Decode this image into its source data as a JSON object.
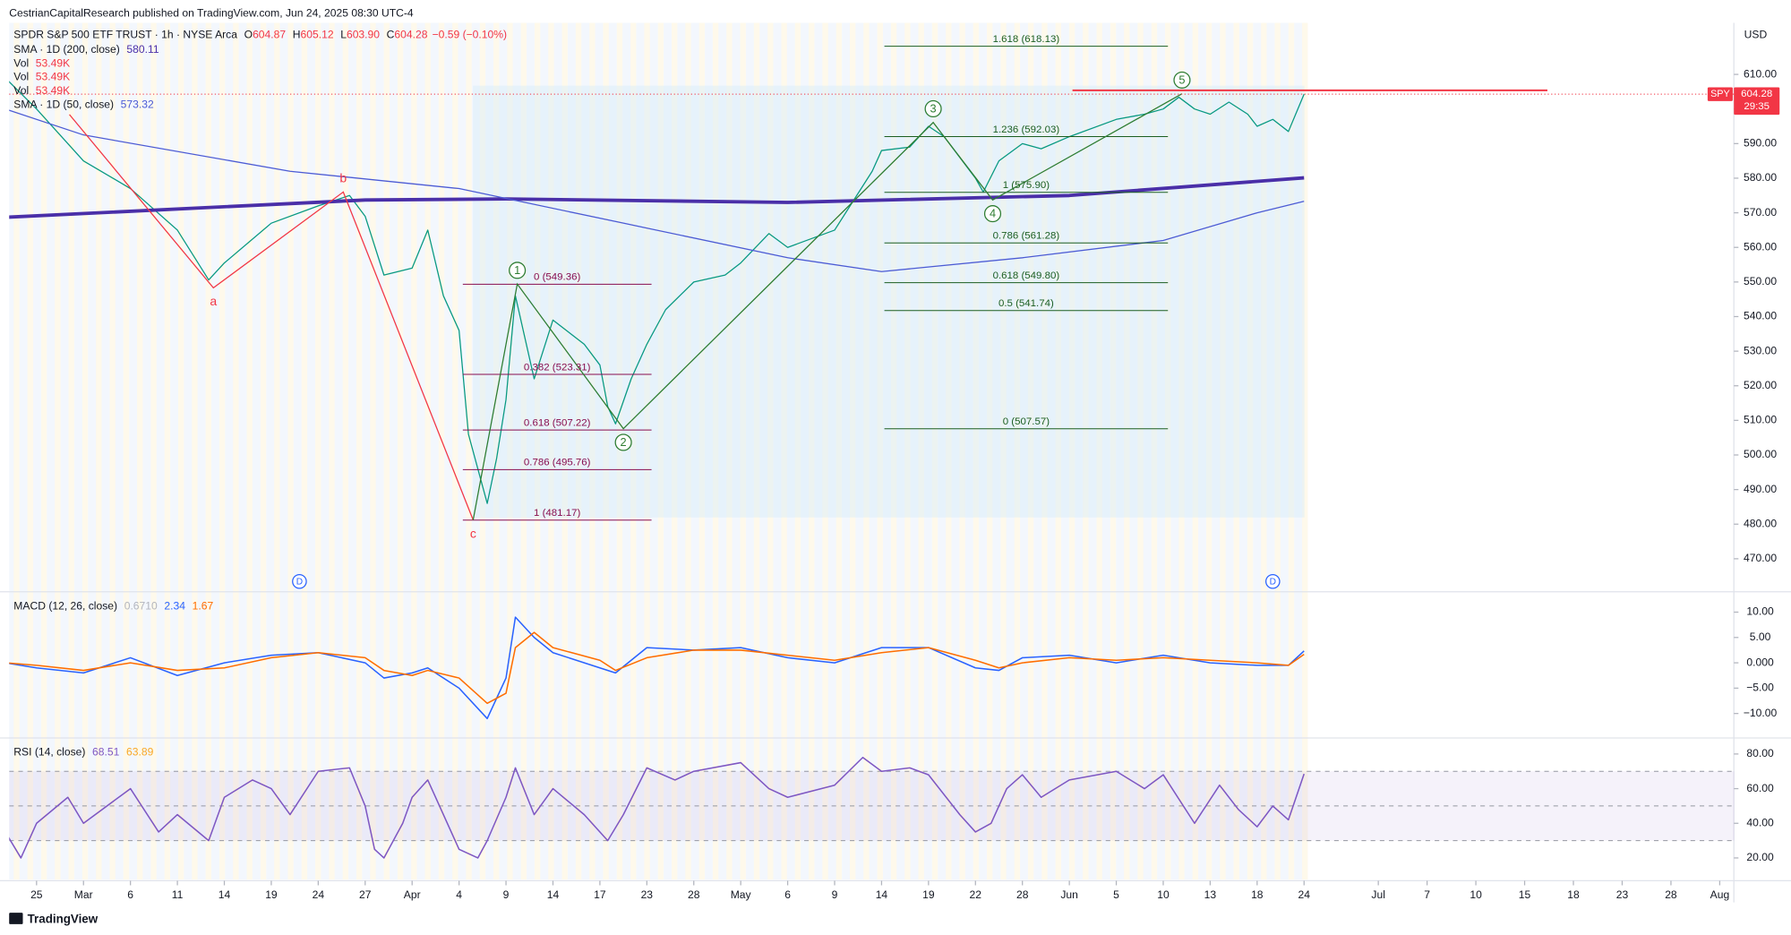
{
  "header": {
    "publisher": "CestrianCapitalResearch published on TradingView.com, Jun 24, 2025 08:30 UTC-4",
    "footer": "TradingView"
  },
  "chart_data": [
    {
      "type": "line",
      "currency": "USD",
      "symbol": "SPY",
      "countdown": "29:35",
      "last_price": {
        "value": 604.28,
        "label": "604.28"
      },
      "ohlc": [
        {
          "label": "O",
          "value": "604.87"
        },
        {
          "label": "H",
          "value": "605.12"
        },
        {
          "label": "L",
          "value": "603.90"
        },
        {
          "label": "C",
          "value": "604.28"
        }
      ],
      "change": "−0.59 (−0.10%)",
      "volume_legend": [
        {
          "name": "Vol",
          "value": "53.49K"
        },
        {
          "name": "Vol",
          "value": "53.49K"
        },
        {
          "name": "Vol",
          "value": "53.49K"
        }
      ],
      "xlim": [
        52.5,
        214.2
      ],
      "xticks": [
        {
          "value": 56,
          "label": "25"
        },
        {
          "value": 62,
          "label": "Mar"
        },
        {
          "value": 65,
          "label": "6"
        },
        {
          "value": 70,
          "label": "11"
        },
        {
          "value": 73,
          "label": "14"
        },
        {
          "value": 78,
          "label": "19"
        },
        {
          "value": 83,
          "label": "24"
        },
        {
          "value": 86,
          "label": "27"
        },
        {
          "value": 91,
          "label": "Apr"
        },
        {
          "value": 94,
          "label": "4"
        },
        {
          "value": 99,
          "label": "9"
        },
        {
          "value": 104,
          "label": "14"
        },
        {
          "value": 107,
          "label": "17"
        },
        {
          "value": 113,
          "label": "23"
        },
        {
          "value": 118,
          "label": "28"
        },
        {
          "value": 121,
          "label": "May"
        },
        {
          "value": 126,
          "label": "6"
        },
        {
          "value": 129,
          "label": "9"
        },
        {
          "value": 134,
          "label": "14"
        },
        {
          "value": 139,
          "label": "19"
        },
        {
          "value": 142,
          "label": "22"
        },
        {
          "value": 148,
          "label": "28"
        },
        {
          "value": 153,
          "label": "Jun"
        },
        {
          "value": 156,
          "label": "5"
        },
        {
          "value": 161,
          "label": "10"
        },
        {
          "value": 164,
          "label": "13"
        },
        {
          "value": 169,
          "label": "18"
        },
        {
          "value": 175,
          "label": "24"
        },
        {
          "value": 182,
          "label": "Jul"
        },
        {
          "value": 188,
          "label": "7"
        },
        {
          "value": 191,
          "label": "10"
        },
        {
          "value": 196,
          "label": "15"
        },
        {
          "value": 199,
          "label": "18"
        },
        {
          "value": 204,
          "label": "23"
        },
        {
          "value": 209,
          "label": "28"
        },
        {
          "value": 213,
          "label": "Aug"
        }
      ],
      "ylim": [
        460.8,
        624.9
      ],
      "yticks": [
        {
          "value": 470,
          "label": "470.00"
        },
        {
          "value": 480,
          "label": "480.00"
        },
        {
          "value": 490,
          "label": "490.00"
        },
        {
          "value": 500,
          "label": "500.00"
        },
        {
          "value": 510,
          "label": "510.00"
        },
        {
          "value": 520,
          "label": "520.00"
        },
        {
          "value": 530,
          "label": "530.00"
        },
        {
          "value": 540,
          "label": "540.00"
        },
        {
          "value": 550,
          "label": "550.00"
        },
        {
          "value": 560,
          "label": "560.00"
        },
        {
          "value": 570,
          "label": "570.00"
        },
        {
          "value": 580,
          "label": "580.00"
        },
        {
          "value": 590,
          "label": "590.00"
        },
        {
          "value": 600,
          "label": "600.00"
        },
        {
          "value": 610,
          "label": "610.00"
        }
      ],
      "series": [
        {
          "name": "SPDR S&P 500 ETF TRUST · 1h · NYSE Arca",
          "color": "#089981",
          "width": 1,
          "x": [
            52,
            56,
            62,
            65,
            70,
            72,
            73,
            78,
            83,
            85,
            86,
            88,
            91,
            92,
            93,
            94,
            95,
            97,
            98,
            99,
            100,
            102,
            104,
            106,
            107,
            108,
            109,
            111,
            113,
            115,
            118,
            120,
            121,
            124,
            126,
            129,
            133,
            134,
            137,
            139,
            140,
            142,
            143,
            145,
            148,
            150,
            153,
            156,
            159,
            161,
            162,
            163,
            164,
            166,
            168,
            169,
            171,
            173,
            175
          ],
          "values": [
            609,
            600,
            585,
            577,
            565,
            550.6,
            555.5,
            567,
            572,
            575,
            569,
            552,
            554,
            565,
            546,
            536,
            506,
            486,
            499,
            516,
            546,
            522,
            539,
            532,
            526,
            514,
            509,
            522,
            532,
            542,
            550,
            552,
            555.5,
            564,
            560,
            565,
            582,
            588,
            589,
            595,
            592,
            580,
            576,
            585,
            590,
            588.5,
            592,
            597,
            598.5,
            600,
            603.4,
            600,
            598.5,
            602,
            598.5,
            595,
            597,
            593.5,
            604.28
          ]
        },
        {
          "name": "SMA · 1D (200, close)",
          "legend_value": "580.11",
          "color": "#4a2fa8",
          "width": 3,
          "x": [
            52,
            86,
            99,
            126,
            153,
            175
          ],
          "values": [
            568.7,
            573.7,
            574,
            573,
            575,
            580.11
          ]
        },
        {
          "name": "SMA · 1D (50, close)",
          "legend_value": "573.32",
          "color": "#4c5bd4",
          "width": 1,
          "x": [
            52,
            62,
            80,
            94,
            110,
            126,
            134,
            148,
            161,
            169,
            175
          ],
          "values": [
            600,
            592.5,
            582,
            577,
            567,
            557,
            553,
            557,
            562,
            570,
            573.32
          ]
        }
      ],
      "waves": [
        {
          "color": "#f23645",
          "circled": false,
          "x": [
            60.2,
            72.3,
            84.6,
            95.5
          ],
          "values": [
            598.4,
            548.3,
            576,
            481.2
          ],
          "labels": [
            null,
            "a",
            "b",
            "c"
          ]
        },
        {
          "color": "#2e7d32",
          "circled": true,
          "x": [
            95.5,
            100.2,
            110,
            139.3,
            144.2,
            162.2
          ],
          "values": [
            481.2,
            549.4,
            507.6,
            596.1,
            573.7,
            604.4
          ],
          "labels": [
            null,
            "1",
            "2",
            "3",
            "4",
            "5"
          ]
        }
      ],
      "fibs": [
        {
          "color": "#880e4f",
          "start": 94.4,
          "end": 113.5,
          "levels": [
            {
              "value": 549.36,
              "label": "0 (549.36)"
            },
            {
              "value": 523.31,
              "label": "0.382 (523.31)"
            },
            {
              "value": 507.22,
              "label": "0.618 (507.22)"
            },
            {
              "value": 495.76,
              "label": "0.786 (495.76)"
            },
            {
              "value": 481.17,
              "label": "1 (481.17)"
            }
          ]
        },
        {
          "color": "#1b5e20",
          "start": 134.3,
          "end": 161.3,
          "levels": [
            {
              "value": 618.13,
              "label": "1.618 (618.13)"
            },
            {
              "value": 592.03,
              "label": "1.236 (592.03)"
            },
            {
              "value": 575.9,
              "label": "1 (575.90)"
            },
            {
              "value": 561.28,
              "label": "0.786 (561.28)"
            },
            {
              "value": 549.8,
              "label": "0.618 (549.80)"
            },
            {
              "value": 541.74,
              "label": "0.5 (541.74)"
            },
            {
              "value": 507.57,
              "label": "0 (507.57)"
            }
          ]
        }
      ],
      "resistance": {
        "value": 605.4,
        "start": 153.2,
        "end": 197.4,
        "color": "#f23645"
      },
      "dividends": [
        {
          "x": 81,
          "label": "D"
        },
        {
          "x": 171,
          "label": "D"
        }
      ]
    },
    {
      "type": "line",
      "title": "MACD (12, 26, close)",
      "legend_values": [
        {
          "text": "0.6710",
          "color": "#b2b5be"
        },
        {
          "text": "2.34",
          "color": "#2962ff"
        },
        {
          "text": "1.67",
          "color": "#ff6d00"
        }
      ],
      "ylim": [
        -14.6,
        13.8
      ],
      "yticks": [
        {
          "value": 10,
          "label": "10.00"
        },
        {
          "value": 5,
          "label": "5.00"
        },
        {
          "value": 0,
          "label": "0.000"
        },
        {
          "value": -5,
          "label": "−5.00"
        },
        {
          "value": -10,
          "label": "−10.00"
        }
      ],
      "series": [
        {
          "color": "#2962ff",
          "width": 1.2,
          "x": [
            52,
            56,
            62,
            65,
            70,
            73,
            78,
            83,
            86,
            88,
            91,
            92,
            94,
            97,
            99,
            100,
            102,
            104,
            107,
            109,
            113,
            118,
            121,
            126,
            129,
            134,
            139,
            142,
            145,
            148,
            153,
            156,
            161,
            164,
            169,
            173,
            175
          ],
          "values": [
            0,
            -1,
            -2,
            1,
            -2.5,
            0,
            1.5,
            2,
            0,
            -3,
            -2,
            -1,
            -5,
            -11,
            -3,
            9,
            5,
            2,
            -1,
            -2,
            3,
            2.5,
            3,
            1,
            0,
            3,
            3,
            -1,
            -1.5,
            1,
            1.5,
            0,
            1.5,
            0,
            -0.5,
            -0.5,
            2.34
          ]
        },
        {
          "color": "#ff6d00",
          "width": 1.2,
          "x": [
            52,
            56,
            62,
            65,
            70,
            73,
            78,
            83,
            86,
            88,
            91,
            92,
            94,
            97,
            99,
            100,
            102,
            104,
            107,
            109,
            113,
            118,
            121,
            126,
            129,
            134,
            139,
            142,
            145,
            148,
            153,
            156,
            161,
            164,
            169,
            173,
            175
          ],
          "values": [
            0,
            -0.5,
            -1.5,
            0,
            -1.5,
            -1,
            1,
            2,
            1,
            -1.5,
            -2.5,
            -1.5,
            -3,
            -8,
            -6,
            3,
            6,
            3,
            0.5,
            -1.5,
            1,
            2.5,
            2.5,
            1.5,
            0.5,
            2,
            3,
            0.5,
            -1,
            0,
            1,
            0.5,
            1,
            0.5,
            0,
            -0.5,
            1.67
          ]
        }
      ]
    },
    {
      "type": "line",
      "title": "RSI (14, close)",
      "legend_values": [
        {
          "text": "68.51",
          "color": "#7e57c2"
        },
        {
          "text": "63.89",
          "color": "#f9a825"
        }
      ],
      "ylim": [
        7.5,
        88.6
      ],
      "yticks": [
        {
          "value": 80,
          "label": "80.00"
        },
        {
          "value": 60,
          "label": "60.00"
        },
        {
          "value": 40,
          "label": "40.00"
        },
        {
          "value": 20,
          "label": "20.00"
        }
      ],
      "bands": [
        70,
        50,
        30
      ],
      "series": [
        {
          "color": "#7e57c2",
          "width": 1.2,
          "x": [
            52,
            54,
            56,
            60,
            62,
            65,
            68,
            70,
            72,
            73,
            76,
            78,
            80,
            83,
            85,
            86,
            87,
            88,
            90,
            91,
            92,
            94,
            96,
            97,
            99,
            100,
            102,
            104,
            106,
            108,
            110,
            113,
            116,
            118,
            121,
            124,
            126,
            129,
            132,
            134,
            137,
            139,
            141,
            142,
            144,
            146,
            148,
            150,
            153,
            156,
            159,
            161,
            163,
            165,
            167,
            169,
            171,
            173,
            175
          ],
          "values": [
            35,
            20,
            40,
            55,
            40,
            60,
            35,
            45,
            30,
            55,
            65,
            60,
            45,
            70,
            72,
            50,
            25,
            20,
            40,
            55,
            65,
            25,
            20,
            30,
            55,
            72,
            45,
            60,
            45,
            30,
            45,
            72,
            65,
            70,
            75,
            60,
            55,
            62,
            78,
            70,
            72,
            68,
            45,
            35,
            40,
            60,
            68,
            55,
            65,
            70,
            60,
            68,
            40,
            62,
            48,
            38,
            50,
            42,
            68.51
          ]
        }
      ]
    }
  ]
}
